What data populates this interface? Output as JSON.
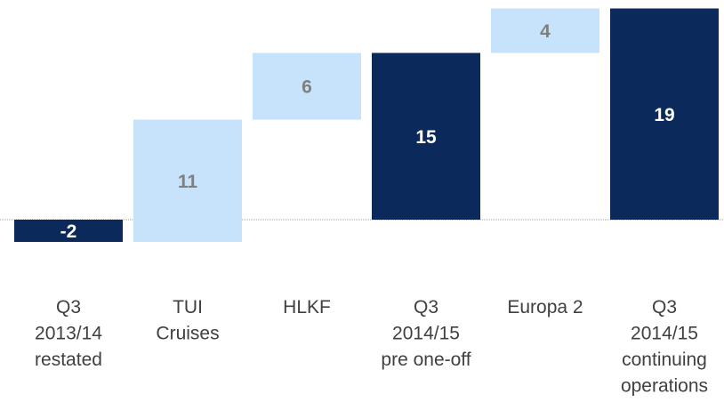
{
  "chart_data": {
    "type": "waterfall",
    "categories": [
      [
        "Q3",
        "2013/14",
        "restated"
      ],
      [
        "TUI",
        "Cruises"
      ],
      [
        "HLKF"
      ],
      [
        "Q3",
        "2014/15",
        "pre one-off"
      ],
      [
        "Europa 2"
      ],
      [
        "Q3",
        "2014/15",
        "continuing",
        "operations"
      ]
    ],
    "values": [
      -2,
      11,
      6,
      15,
      4,
      19
    ],
    "is_total": [
      true,
      false,
      false,
      true,
      false,
      true
    ],
    "total_color": "#0b2a5b",
    "step_color": "#c6e3fb",
    "total_label_color": "#ffffff",
    "step_label_color": "#7f7f7f",
    "ylim": [
      -4,
      20
    ]
  }
}
